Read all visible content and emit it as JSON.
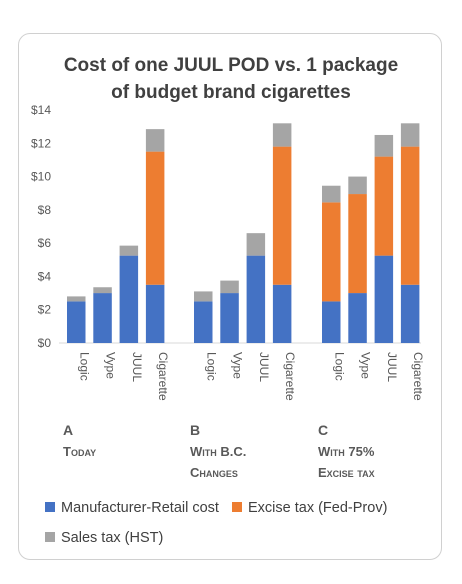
{
  "chart_data": {
    "type": "bar",
    "stacked": true,
    "title_line1": "Cost of one JUUL POD vs. 1 package",
    "title_line2": "of budget brand cigarettes",
    "y_ticks": [
      "$0",
      "$2",
      "$4",
      "$6",
      "$8",
      "$10",
      "$12",
      "$14"
    ],
    "ylim": [
      0,
      14
    ],
    "grid": false,
    "groups": [
      {
        "letter": "A",
        "caption_line1": "Today",
        "caption_line2": "",
        "categories": [
          "Logic",
          "Vype",
          "JUUL",
          "Cigarette"
        ],
        "series": [
          {
            "name": "Manufacturer-Retail cost",
            "values": [
              2.5,
              3.0,
              5.25,
              3.5
            ]
          },
          {
            "name": "Excise tax (Fed-Prov)",
            "values": [
              0,
              0,
              0,
              8.0
            ]
          },
          {
            "name": "Sales tax (HST)",
            "values": [
              0.3,
              0.35,
              0.6,
              1.35
            ]
          }
        ]
      },
      {
        "letter": "B",
        "caption_line1": "With B.C.",
        "caption_line2": "Changes",
        "categories": [
          "Logic",
          "Vype",
          "JUUL",
          "Cigarette"
        ],
        "series": [
          {
            "name": "Manufacturer-Retail cost",
            "values": [
              2.5,
              3.0,
              5.25,
              3.5
            ]
          },
          {
            "name": "Excise tax (Fed-Prov)",
            "values": [
              0,
              0,
              0,
              8.3
            ]
          },
          {
            "name": "Sales tax (HST)",
            "values": [
              0.6,
              0.75,
              1.35,
              1.4
            ]
          }
        ]
      },
      {
        "letter": "C",
        "caption_line1": "With 75%",
        "caption_line2": "Excise tax",
        "categories": [
          "Logic",
          "Vype",
          "JUUL",
          "Cigarette"
        ],
        "series": [
          {
            "name": "Manufacturer-Retail cost",
            "values": [
              2.5,
              3.0,
              5.25,
              3.5
            ]
          },
          {
            "name": "Excise tax (Fed-Prov)",
            "values": [
              5.95,
              5.95,
              5.95,
              8.3
            ]
          },
          {
            "name": "Sales tax (HST)",
            "values": [
              1.0,
              1.05,
              1.3,
              1.4
            ]
          }
        ]
      }
    ],
    "legend": [
      {
        "name": "Manufacturer-Retail cost",
        "color": "#4472c4"
      },
      {
        "name": "Excise tax (Fed-Prov)",
        "color": "#ed7d31"
      },
      {
        "name": "Sales tax (HST)",
        "color": "#a5a5a5"
      }
    ],
    "legend_position": "bottom"
  }
}
